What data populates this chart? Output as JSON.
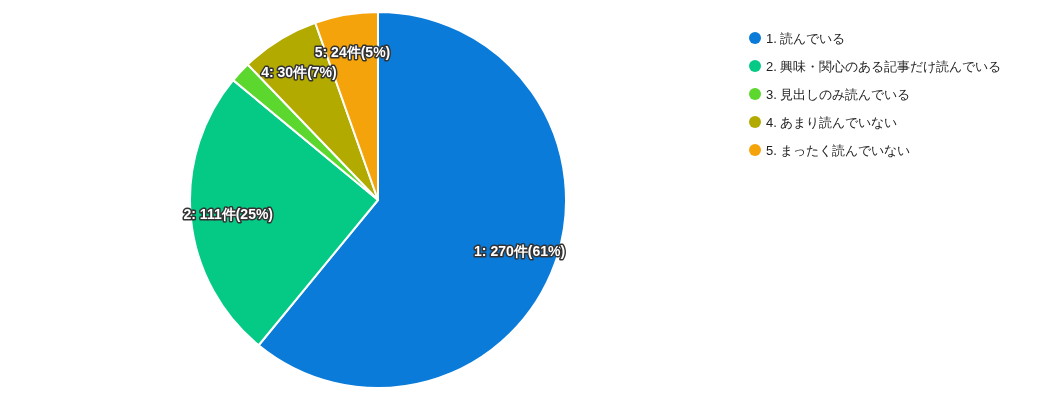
{
  "chart_data": {
    "type": "pie",
    "categories": [
      "1. 読んでいる",
      "2. 興味・関心のある記事だけ読んでいる",
      "3. 見出しのみ読んでいる",
      "4. あまり読んでいない",
      "5. まったく読んでいない"
    ],
    "values": [
      270,
      111,
      8,
      30,
      24
    ],
    "colors": [
      "#0a7bd9",
      "#04ca85",
      "#5cd72e",
      "#b3aa00",
      "#f4a40a"
    ],
    "value_labels": [
      "1: 270件(61%)",
      "2: 111件(25%)",
      null,
      "4: 30件(7%)",
      "5: 24件(5%)"
    ],
    "legend": "top right"
  }
}
